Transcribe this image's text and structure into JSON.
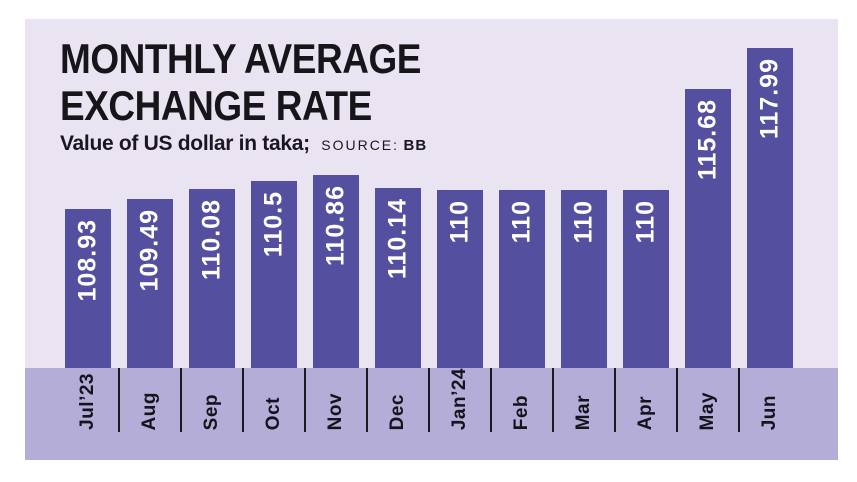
{
  "title": {
    "line1": "MONTHLY AVERAGE",
    "line2": "EXCHANGE RATE"
  },
  "subtitle": {
    "text": "Value of US dollar in taka;",
    "source_label": "SOURCE:",
    "source_value": "BB"
  },
  "colors": {
    "page_background": "#ffffff",
    "card_background": "#eae3f2",
    "axis_band": "#b3add7",
    "bar": "#544f9f",
    "bar_value_text": "#ffffff",
    "title_text": "#17141a",
    "month_text": "#16131c",
    "tick_line": "#1c1a22"
  },
  "chart_data": {
    "type": "bar",
    "title": "MONTHLY AVERAGE EXCHANGE RATE",
    "subtitle": "Value of US dollar in taka; SOURCE: BB",
    "categories": [
      "Jul’23",
      "Aug",
      "Sep",
      "Oct",
      "Nov",
      "Dec",
      "Jan’24",
      "Feb",
      "Mar",
      "Apr",
      "May",
      "Jun"
    ],
    "values": [
      108.93,
      109.49,
      110.08,
      110.5,
      110.86,
      110.14,
      110,
      110,
      110,
      110,
      115.68,
      117.99
    ],
    "xlabel": "",
    "ylabel": "Value of US dollar in taka",
    "ylim": [
      100,
      118
    ],
    "grid": false,
    "legend": false,
    "value_labels": "inside bars, rotated 90deg, white bold",
    "category_labels": "rotated 90deg on lavender band below bars"
  }
}
